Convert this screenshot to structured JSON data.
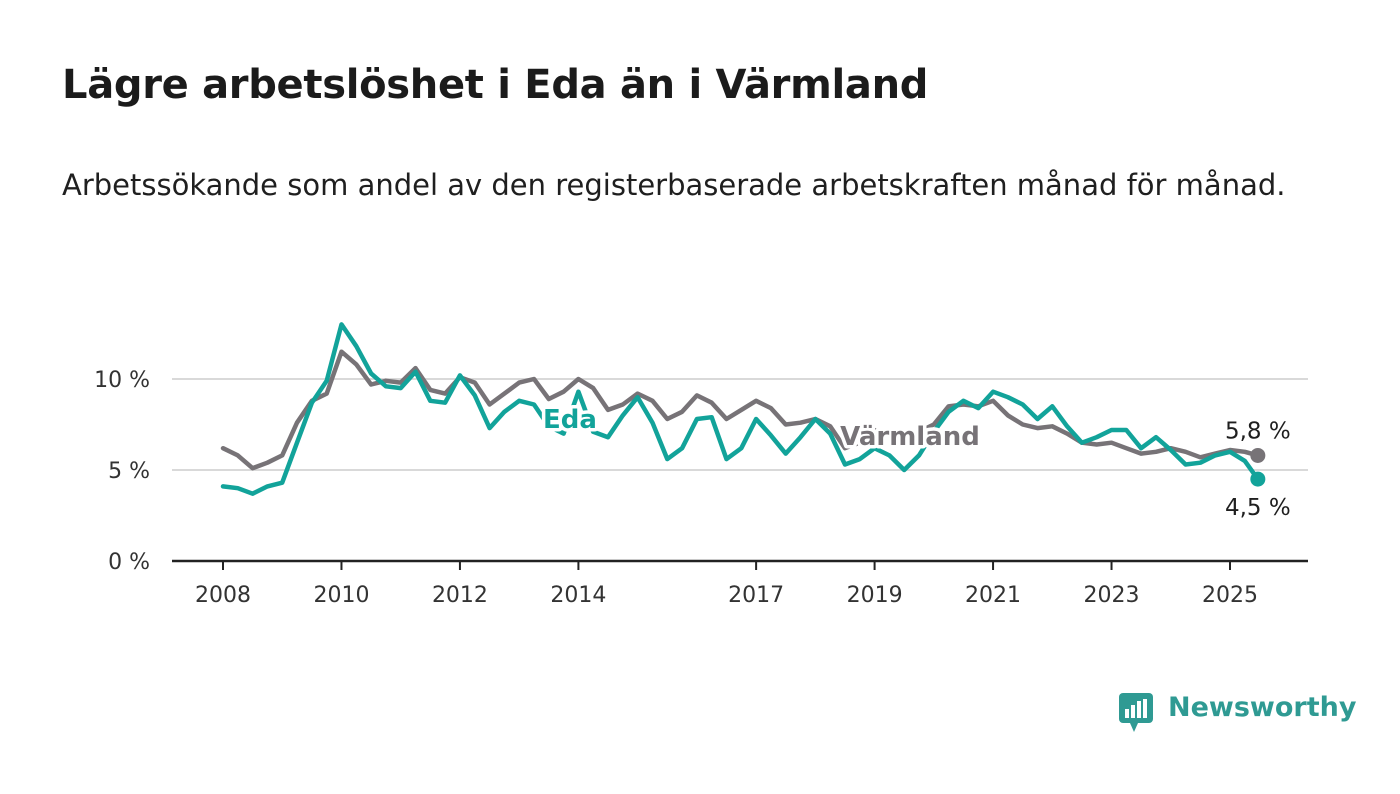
{
  "title": "Lägre arbetslöshet i Eda än i Värmland",
  "subtitle": "Arbetssökande som andel av den registerbaserade arbetskraften månad för månad.",
  "brand": {
    "name": "Newsworthy",
    "color": "#2f9a93"
  },
  "chart_data": {
    "type": "line",
    "ylim": [
      0,
      13
    ],
    "y_ticks": [
      0,
      5,
      10
    ],
    "y_tick_labels": [
      "0 %",
      "5 %",
      "10 %"
    ],
    "x_range": [
      2008.0,
      2025.5
    ],
    "x_ticks": [
      2008,
      2010,
      2012,
      2014,
      2017,
      2019,
      2021,
      2023,
      2025
    ],
    "x_tick_labels": [
      "2008",
      "2010",
      "2012",
      "2014",
      "2017",
      "2019",
      "2021",
      "2023",
      "2025"
    ],
    "grid": true,
    "series": [
      {
        "name": "Värmland",
        "color": "#777377",
        "end_label": "5,8 %",
        "points": [
          [
            2008.0,
            6.2
          ],
          [
            2008.25,
            5.8
          ],
          [
            2008.5,
            5.1
          ],
          [
            2008.75,
            5.4
          ],
          [
            2009.0,
            5.8
          ],
          [
            2009.25,
            7.6
          ],
          [
            2009.5,
            8.8
          ],
          [
            2009.75,
            9.2
          ],
          [
            2010.0,
            11.5
          ],
          [
            2010.25,
            10.8
          ],
          [
            2010.5,
            9.7
          ],
          [
            2010.75,
            9.9
          ],
          [
            2011.0,
            9.8
          ],
          [
            2011.25,
            10.6
          ],
          [
            2011.5,
            9.4
          ],
          [
            2011.75,
            9.2
          ],
          [
            2012.0,
            10.1
          ],
          [
            2012.25,
            9.8
          ],
          [
            2012.5,
            8.6
          ],
          [
            2012.75,
            9.2
          ],
          [
            2013.0,
            9.8
          ],
          [
            2013.25,
            10.0
          ],
          [
            2013.5,
            8.9
          ],
          [
            2013.75,
            9.3
          ],
          [
            2014.0,
            10.0
          ],
          [
            2014.25,
            9.5
          ],
          [
            2014.5,
            8.3
          ],
          [
            2014.75,
            8.6
          ],
          [
            2015.0,
            9.2
          ],
          [
            2015.25,
            8.8
          ],
          [
            2015.5,
            7.8
          ],
          [
            2015.75,
            8.2
          ],
          [
            2016.0,
            9.1
          ],
          [
            2016.25,
            8.7
          ],
          [
            2016.5,
            7.8
          ],
          [
            2016.75,
            8.3
          ],
          [
            2017.0,
            8.8
          ],
          [
            2017.25,
            8.4
          ],
          [
            2017.5,
            7.5
          ],
          [
            2017.75,
            7.6
          ],
          [
            2018.0,
            7.8
          ],
          [
            2018.25,
            7.4
          ],
          [
            2018.5,
            6.2
          ],
          [
            2018.75,
            6.5
          ],
          [
            2019.0,
            7.2
          ],
          [
            2019.25,
            7.0
          ],
          [
            2019.5,
            6.6
          ],
          [
            2019.75,
            7.1
          ],
          [
            2020.0,
            7.5
          ],
          [
            2020.25,
            8.5
          ],
          [
            2020.5,
            8.6
          ],
          [
            2020.75,
            8.5
          ],
          [
            2021.0,
            8.8
          ],
          [
            2021.25,
            8.0
          ],
          [
            2021.5,
            7.5
          ],
          [
            2021.75,
            7.3
          ],
          [
            2022.0,
            7.4
          ],
          [
            2022.25,
            7.0
          ],
          [
            2022.5,
            6.5
          ],
          [
            2022.75,
            6.4
          ],
          [
            2023.0,
            6.5
          ],
          [
            2023.25,
            6.2
          ],
          [
            2023.5,
            5.9
          ],
          [
            2023.75,
            6.0
          ],
          [
            2024.0,
            6.2
          ],
          [
            2024.25,
            6.0
          ],
          [
            2024.5,
            5.7
          ],
          [
            2024.75,
            5.9
          ],
          [
            2025.0,
            6.1
          ],
          [
            2025.25,
            6.0
          ],
          [
            2025.47,
            5.8
          ]
        ]
      },
      {
        "name": "Eda",
        "color": "#12a39a",
        "end_label": "4,5 %",
        "points": [
          [
            2008.0,
            4.1
          ],
          [
            2008.25,
            4.0
          ],
          [
            2008.5,
            3.7
          ],
          [
            2008.75,
            4.1
          ],
          [
            2009.0,
            4.3
          ],
          [
            2009.25,
            6.5
          ],
          [
            2009.5,
            8.7
          ],
          [
            2009.75,
            9.9
          ],
          [
            2010.0,
            13.0
          ],
          [
            2010.25,
            11.8
          ],
          [
            2010.5,
            10.3
          ],
          [
            2010.75,
            9.6
          ],
          [
            2011.0,
            9.5
          ],
          [
            2011.25,
            10.4
          ],
          [
            2011.5,
            8.8
          ],
          [
            2011.75,
            8.7
          ],
          [
            2012.0,
            10.2
          ],
          [
            2012.25,
            9.1
          ],
          [
            2012.5,
            7.3
          ],
          [
            2012.75,
            8.2
          ],
          [
            2013.0,
            8.8
          ],
          [
            2013.25,
            8.6
          ],
          [
            2013.5,
            7.4
          ],
          [
            2013.75,
            7.0
          ],
          [
            2014.0,
            9.3
          ],
          [
            2014.25,
            7.1
          ],
          [
            2014.5,
            6.8
          ],
          [
            2014.75,
            8.0
          ],
          [
            2015.0,
            9.0
          ],
          [
            2015.25,
            7.6
          ],
          [
            2015.5,
            5.6
          ],
          [
            2015.75,
            6.2
          ],
          [
            2016.0,
            7.8
          ],
          [
            2016.25,
            7.9
          ],
          [
            2016.5,
            5.6
          ],
          [
            2016.75,
            6.2
          ],
          [
            2017.0,
            7.8
          ],
          [
            2017.25,
            6.9
          ],
          [
            2017.5,
            5.9
          ],
          [
            2017.75,
            6.8
          ],
          [
            2018.0,
            7.8
          ],
          [
            2018.25,
            7.0
          ],
          [
            2018.5,
            5.3
          ],
          [
            2018.75,
            5.6
          ],
          [
            2019.0,
            6.2
          ],
          [
            2019.25,
            5.8
          ],
          [
            2019.5,
            5.0
          ],
          [
            2019.75,
            5.8
          ],
          [
            2020.0,
            7.1
          ],
          [
            2020.25,
            8.2
          ],
          [
            2020.5,
            8.8
          ],
          [
            2020.75,
            8.4
          ],
          [
            2021.0,
            9.3
          ],
          [
            2021.25,
            9.0
          ],
          [
            2021.5,
            8.6
          ],
          [
            2021.75,
            7.8
          ],
          [
            2022.0,
            8.5
          ],
          [
            2022.25,
            7.4
          ],
          [
            2022.5,
            6.5
          ],
          [
            2022.75,
            6.8
          ],
          [
            2023.0,
            7.2
          ],
          [
            2023.25,
            7.2
          ],
          [
            2023.5,
            6.2
          ],
          [
            2023.75,
            6.8
          ],
          [
            2024.0,
            6.1
          ],
          [
            2024.25,
            5.3
          ],
          [
            2024.5,
            5.4
          ],
          [
            2024.75,
            5.8
          ],
          [
            2025.0,
            6.0
          ],
          [
            2025.25,
            5.5
          ],
          [
            2025.47,
            4.5
          ]
        ]
      }
    ]
  }
}
